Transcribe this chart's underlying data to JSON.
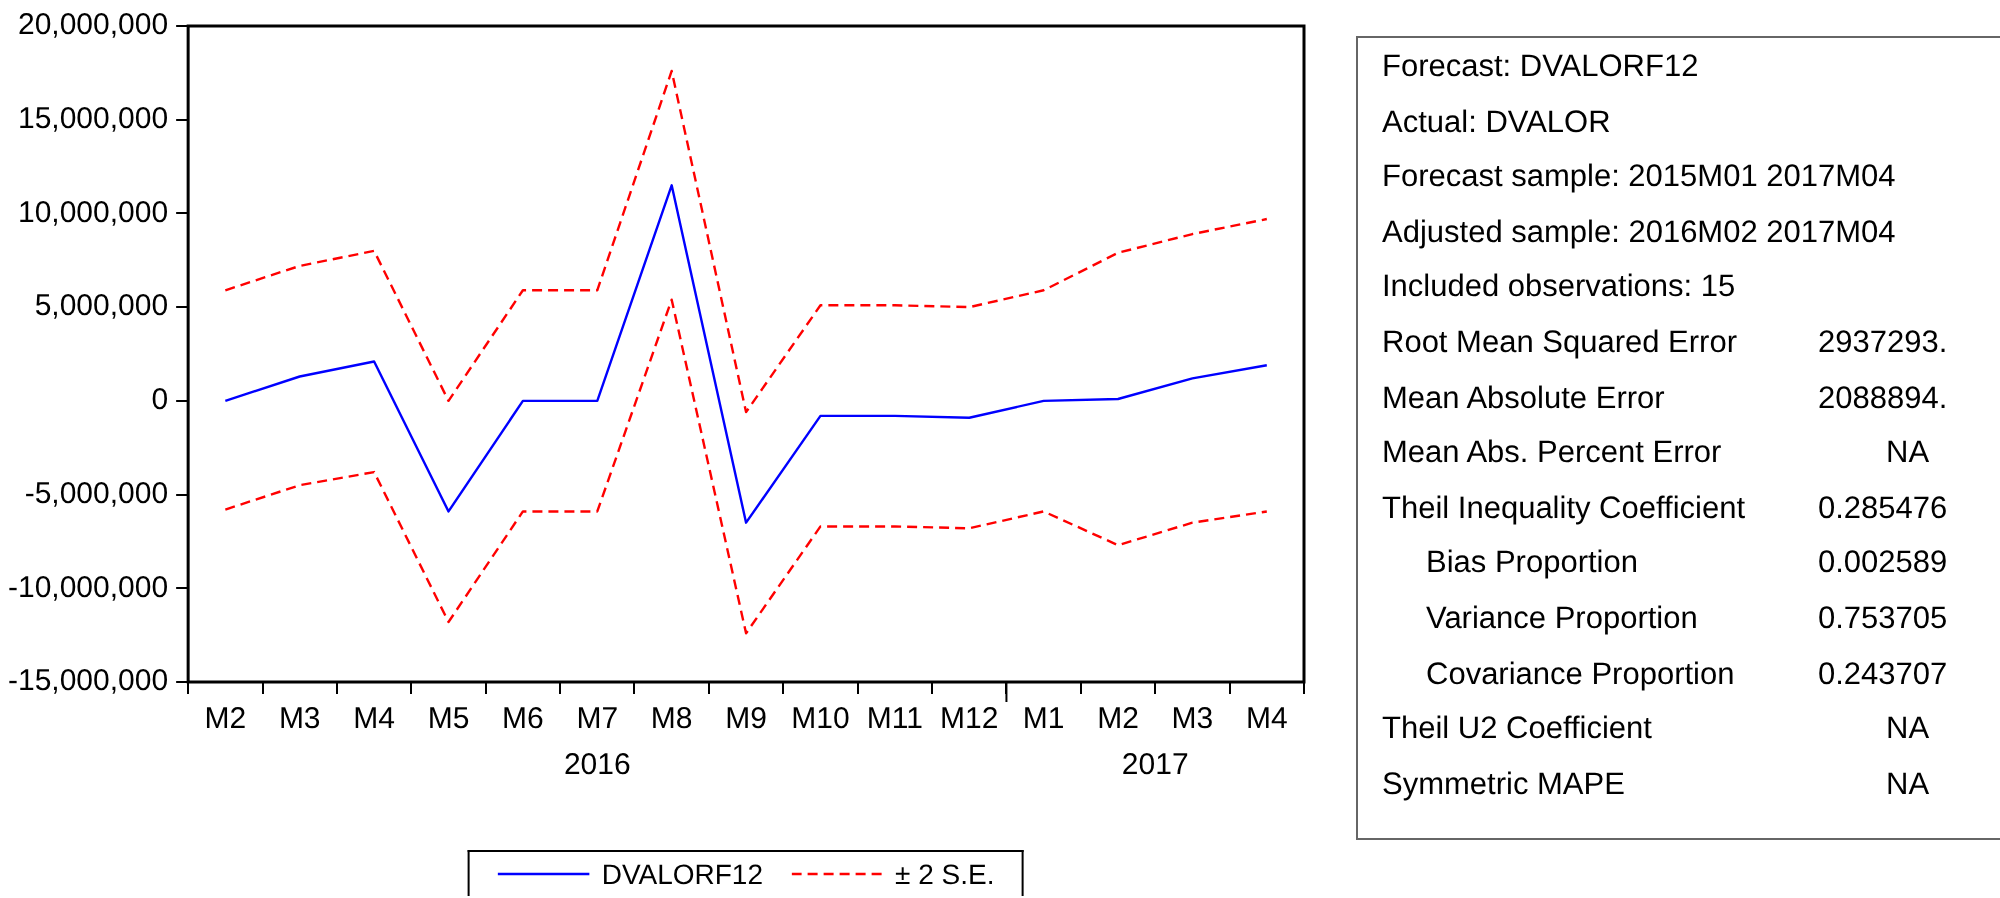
{
  "chart_data": [
    {
      "type": "line",
      "categories": [
        "M2",
        "M3",
        "M4",
        "M5",
        "M6",
        "M7",
        "M8",
        "M9",
        "M10",
        "M11",
        "M12",
        "M1",
        "M2",
        "M3",
        "M4"
      ],
      "series": [
        {
          "name": "DVALORF12",
          "color": "#0000ff",
          "line_style": "solid",
          "values": [
            0,
            1300000,
            2100000,
            -5900000,
            0,
            0,
            11500000,
            -6500000,
            -800000,
            -800000,
            -900000,
            0,
            100000,
            1200000,
            1900000
          ]
        },
        {
          "name": "± 2 S.E.",
          "color": "#ff0000",
          "line_style": "dashed",
          "values": [
            5900000,
            7200000,
            8000000,
            0,
            5900000,
            5900000,
            17600000,
            -600000,
            5100000,
            5100000,
            5000000,
            5900000,
            7900000,
            8900000,
            9700000
          ]
        },
        {
          "color": "#ff0000",
          "line_style": "dashed",
          "values": [
            -5800000,
            -4500000,
            -3800000,
            -11800000,
            -5900000,
            -5900000,
            5400000,
            -12400000,
            -6700000,
            -6700000,
            -6800000,
            -5900000,
            -7700000,
            -6500000,
            -5900000
          ]
        }
      ],
      "ylim": [
        -15000000,
        20000000
      ],
      "yticks": [
        {
          "value": -15000000,
          "label": "-15,000,000"
        },
        {
          "value": -10000000,
          "label": "-10,000,000"
        },
        {
          "value": -5000000,
          "label": "-5,000,000"
        },
        0,
        {
          "value": 5000000,
          "label": "5,000,000"
        },
        {
          "value": 10000000,
          "label": "10,000,000"
        },
        {
          "value": 15000000,
          "label": "15,000,000"
        },
        {
          "value": 20000000,
          "label": "20,000,000"
        }
      ],
      "grid": false,
      "legend": "bottom",
      "marker": "none",
      "annotations": [
        "2016",
        "2017"
      ]
    },
    {
      "type": "other",
      "categories": [
        "Forecast: DVALORF12",
        "Actual: DVALOR",
        "Forecast sample: 2015M01 2017M04",
        "Adjusted sample: 2016M02 2017M04",
        "Included observations: 15",
        "Root Mean Squared Error",
        "Mean Absolute Error",
        "Mean Abs. Percent Error",
        "Theil Inequality Coefficient",
        "Bias Proportion",
        "Variance Proportion",
        "Covariance Proportion",
        "Theil U2 Coefficient",
        "Symmetric MAPE"
      ],
      "value_labels": [
        null,
        null,
        null,
        null,
        null,
        "2937293.",
        "2088894.",
        "NA",
        "0.285476",
        "0.002589",
        "0.753705",
        "0.243707",
        "NA",
        "NA"
      ]
    }
  ]
}
